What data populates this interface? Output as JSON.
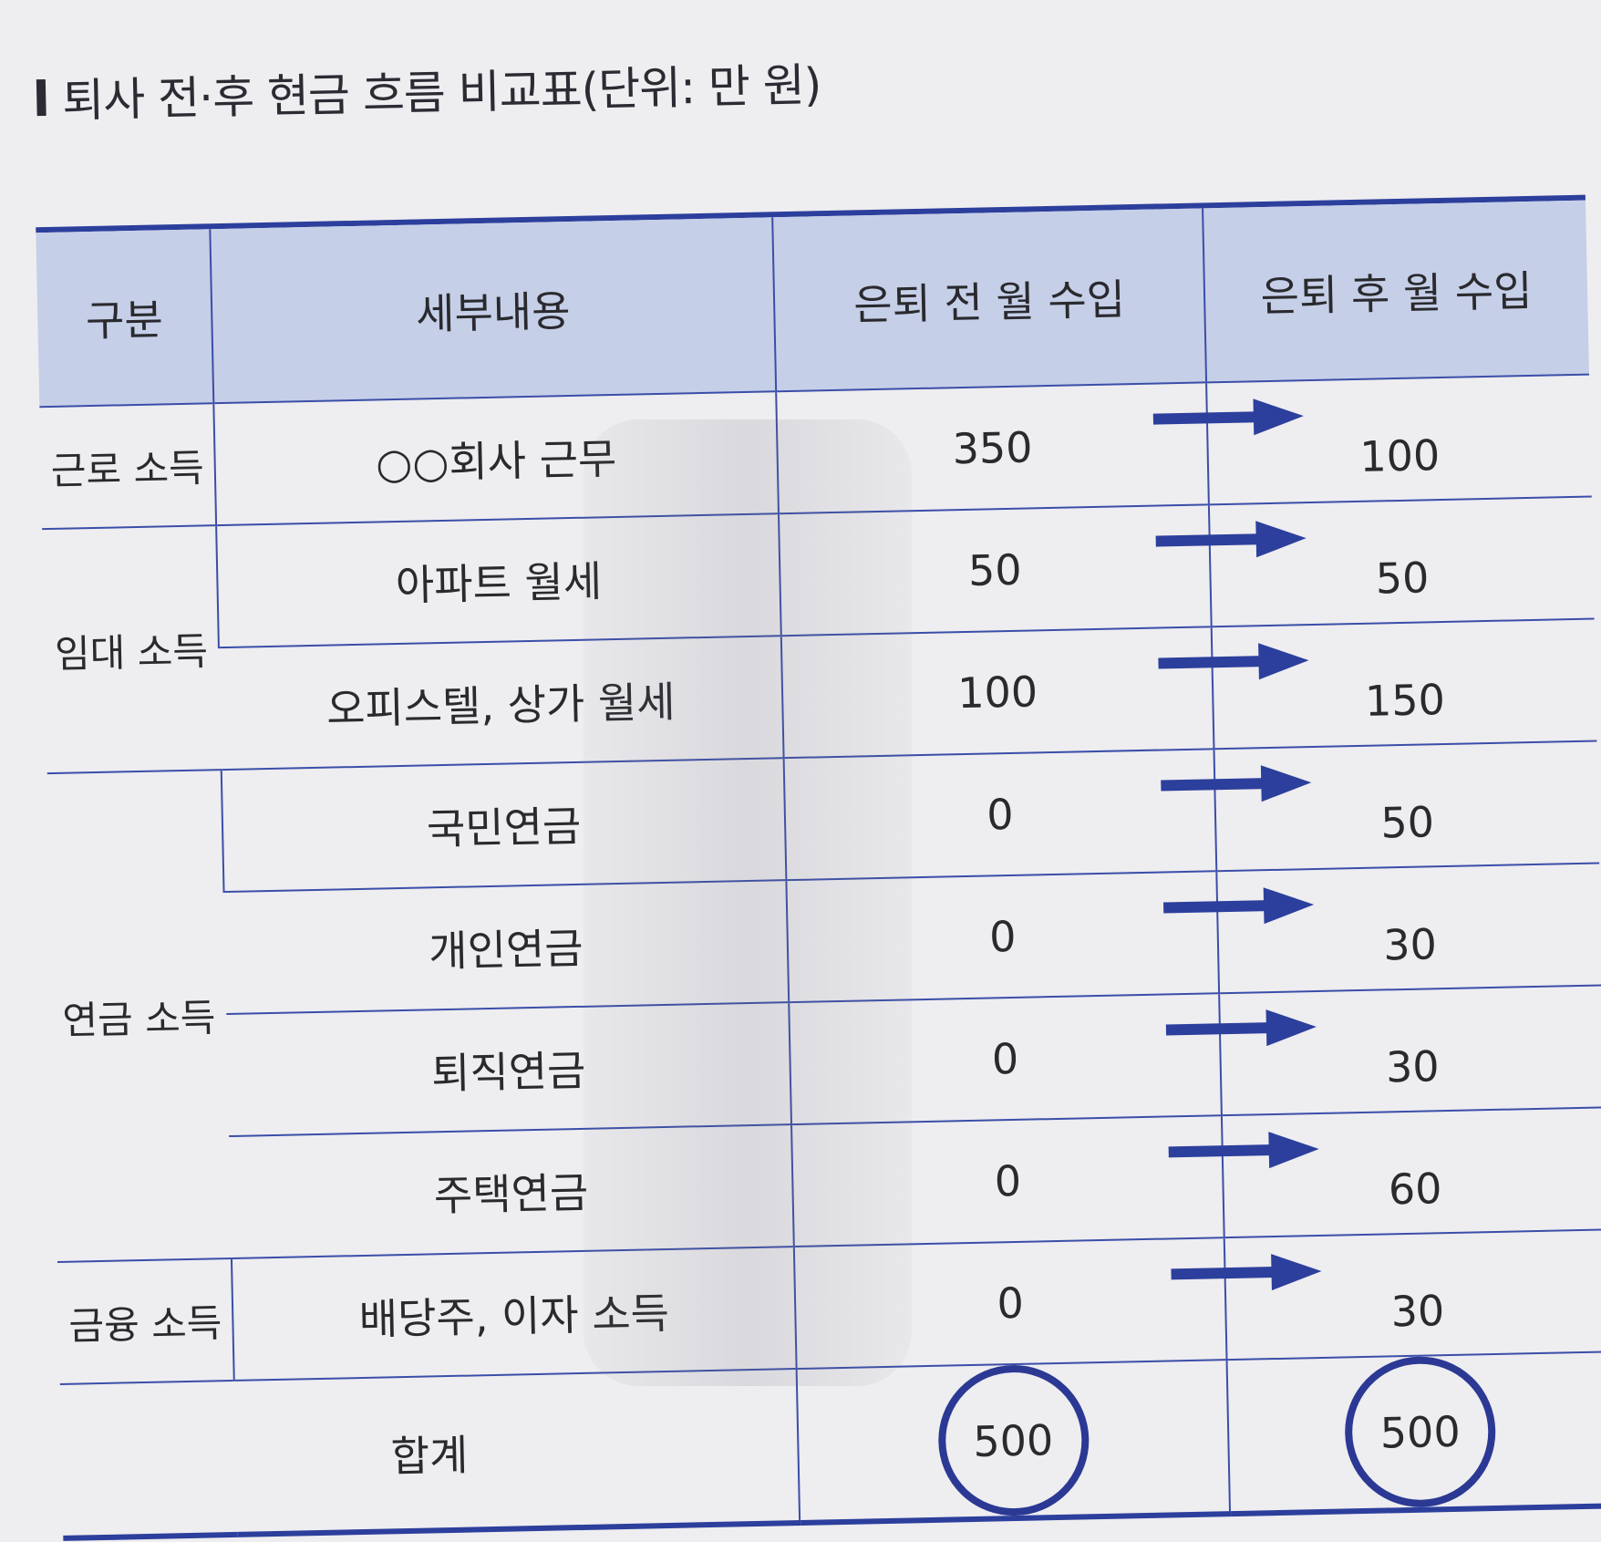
{
  "title": "퇴사 전·후 현금 흐름 비교표(단위: 만 원)",
  "headers": {
    "category": "구분",
    "detail": "세부내용",
    "before": "은퇴 전 월 수입",
    "after": "은퇴 후 월 수입"
  },
  "groups": [
    {
      "label": "근로 소득"
    },
    {
      "label": "임대 소득"
    },
    {
      "label": "연금 소득"
    },
    {
      "label": "금융 소득"
    }
  ],
  "rows": [
    {
      "detail": "○○회사 근무",
      "before": "350",
      "after": "100"
    },
    {
      "detail": "아파트 월세",
      "before": "50",
      "after": "50"
    },
    {
      "detail": "오피스텔, 상가 월세",
      "before": "100",
      "after": "150"
    },
    {
      "detail": "국민연금",
      "before": "0",
      "after": "50"
    },
    {
      "detail": "개인연금",
      "before": "0",
      "after": "30"
    },
    {
      "detail": "퇴직연금",
      "before": "0",
      "after": "30"
    },
    {
      "detail": "주택연금",
      "before": "0",
      "after": "60"
    },
    {
      "detail": "배당주, 이자 소득",
      "before": "0",
      "after": "30"
    }
  ],
  "total": {
    "label": "합계",
    "before": "500",
    "after": "500"
  },
  "colors": {
    "accent": "#2c3f9c",
    "header_fill": "#c6cfe8"
  },
  "icons": {
    "arrow": "right-arrow-icon",
    "highlight": "circle-highlight"
  }
}
